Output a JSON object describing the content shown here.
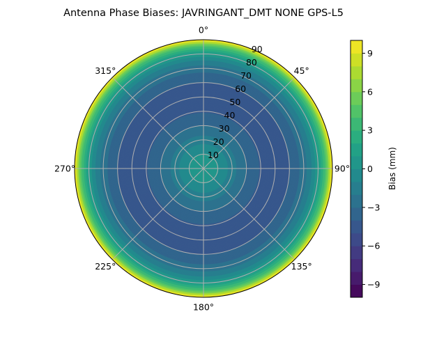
{
  "chart_data": {
    "type": "polar-contour",
    "title": "Antenna Phase Biases: JAVRINGANT_DMT  NONE GPS-L5",
    "theta_direction": "clockwise",
    "theta_zero": "north",
    "theta_ticks": [
      "0°",
      "45°",
      "90°",
      "135°",
      "180°",
      "225°",
      "270°",
      "315°"
    ],
    "r_ticks": [
      "10",
      "20",
      "30",
      "40",
      "50",
      "60",
      "70",
      "80",
      "90"
    ],
    "r_range": [
      0,
      90
    ],
    "grid": true,
    "colormap": "viridis",
    "levels_range": [
      -10,
      10
    ],
    "level_step": 1,
    "colorbar": {
      "label": "Bias (mm)",
      "ticks": [
        "−9",
        "−6",
        "−3",
        "0",
        "3",
        "6",
        "9"
      ],
      "tick_values": [
        -9,
        -6,
        -3,
        0,
        3,
        6,
        9
      ],
      "range": [
        -10,
        10
      ]
    },
    "profile": {
      "zenith_deg": [
        0,
        5,
        10,
        15,
        20,
        25,
        30,
        35,
        40,
        45,
        50,
        55,
        60,
        65,
        70,
        75,
        80,
        83,
        86,
        88,
        90
      ],
      "bias_mm": [
        0.5,
        0.4,
        0.1,
        -0.6,
        -1.5,
        -2.3,
        -3.0,
        -3.6,
        -4.1,
        -4.4,
        -4.5,
        -4.4,
        -4.0,
        -3.4,
        -2.5,
        -1.2,
        0.8,
        2.5,
        5.0,
        7.5,
        10.0
      ]
    }
  }
}
